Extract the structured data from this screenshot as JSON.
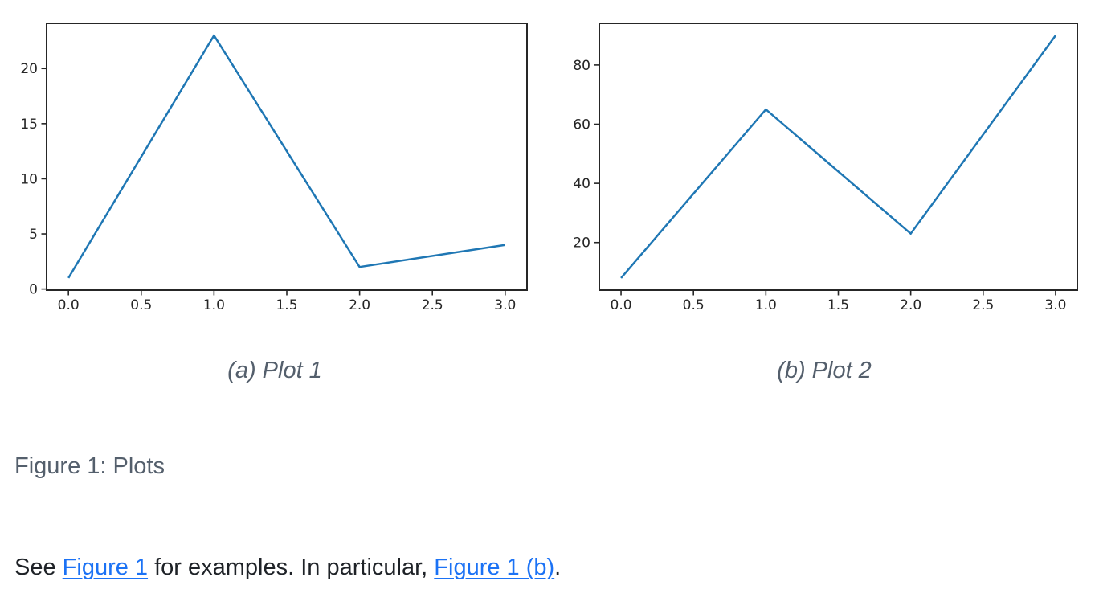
{
  "figure": {
    "label": "Figure 1: Plots",
    "subfigures": [
      {
        "caption": "(a) Plot 1"
      },
      {
        "caption": "(b) Plot 2"
      }
    ]
  },
  "paragraph": {
    "prefix": "See ",
    "link1": "Figure 1",
    "middle": " for examples. In particular, ",
    "link2": "Figure 1 (b)",
    "suffix": "."
  },
  "colors": {
    "background": "#ffffff",
    "line": "#1f77b4",
    "axis": "#262626",
    "link": "#1b72f5",
    "caption_text": "#545f6c",
    "body_text": "#1e2227"
  },
  "chart_data": [
    {
      "type": "line",
      "title": "",
      "xlabel": "",
      "ylabel": "",
      "x": [
        0,
        1,
        2,
        3
      ],
      "values": [
        1,
        23,
        2,
        4
      ],
      "xticks": [
        0,
        0.5,
        1,
        1.5,
        2,
        2.5,
        3
      ],
      "xtick_labels": [
        "0.0",
        "0.5",
        "1.0",
        "1.5",
        "2.0",
        "2.5",
        "3.0"
      ],
      "yticks": [
        0,
        5,
        10,
        15,
        20
      ],
      "ytick_labels": [
        "0",
        "5",
        "10",
        "15",
        "20"
      ],
      "xlim": [
        -0.15,
        3.15
      ],
      "ylim": [
        -0.1,
        24.1
      ],
      "grid": false,
      "legend": null,
      "caption": "(a) Plot 1"
    },
    {
      "type": "line",
      "title": "",
      "xlabel": "",
      "ylabel": "",
      "x": [
        0,
        1,
        2,
        3
      ],
      "values": [
        8,
        65,
        23,
        90
      ],
      "xticks": [
        0,
        0.5,
        1,
        1.5,
        2,
        2.5,
        3
      ],
      "xtick_labels": [
        "0.0",
        "0.5",
        "1.0",
        "1.5",
        "2.0",
        "2.5",
        "3.0"
      ],
      "yticks": [
        20,
        40,
        60,
        80
      ],
      "ytick_labels": [
        "20",
        "40",
        "60",
        "80"
      ],
      "xlim": [
        -0.15,
        3.15
      ],
      "ylim": [
        3.9,
        94.1
      ],
      "grid": false,
      "legend": null,
      "caption": "(b) Plot 2"
    }
  ]
}
